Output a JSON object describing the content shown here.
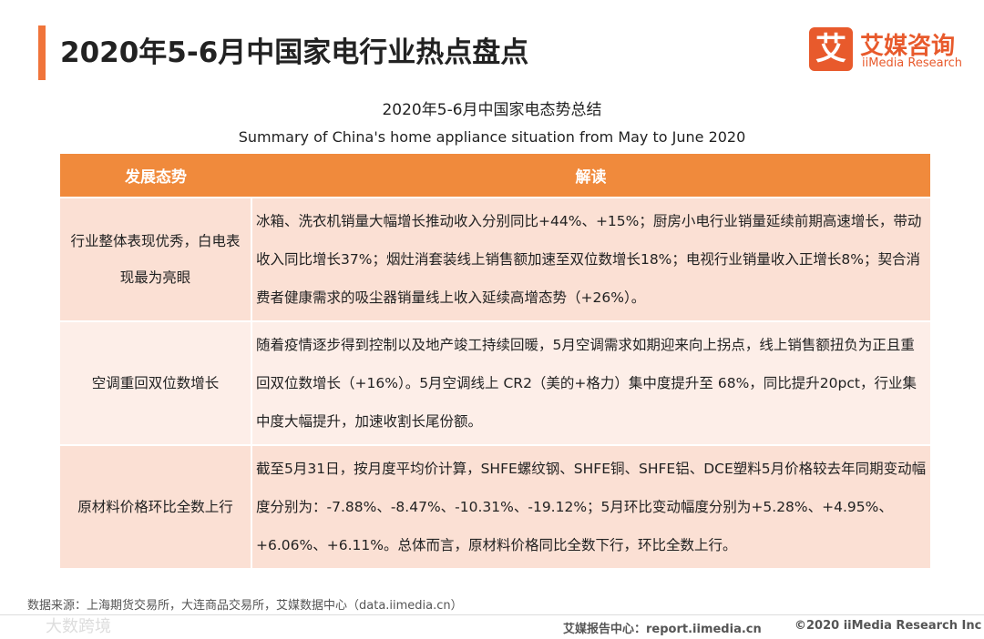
{
  "header": {
    "title": "2020年5-6月中国家电行业热点盘点",
    "logo_icon": "艾",
    "logo_name": "艾媒咨询",
    "logo_en": "iiMedia Research"
  },
  "subtitle": {
    "cn": "2020年5-6月中国家电态势总结",
    "en": "Summary of China's home appliance situation from May to June 2020"
  },
  "table": {
    "columns": [
      "发展态势",
      "解读"
    ],
    "rows": [
      [
        "行业整体表现优秀，白电表现最为亮眼",
        "冰箱、洗衣机销量大幅增长推动收入分别同比+44%、+15%；厨房小电行业销量延续前期高速增长，带动收入同比增长37%；烟灶消套装线上销售额加速至双位数增长18%；电视行业销量收入正增长8%；契合消费者健康需求的吸尘器销量线上收入延续高增态势（+26%）。"
      ],
      [
        "空调重回双位数增长",
        "随着疫情逐步得到控制以及地产竣工持续回暖，5月空调需求如期迎来向上拐点，线上销售额扭负为正且重回双位数增长（+16%）。5月空调线上 CR2（美的+格力）集中度提升至 68%，同比提升20pct，行业集中度大幅提升，加速收割长尾份额。"
      ],
      [
        "原材料价格环比全数上行",
        "截至5月31日，按月度平均价计算，SHFE螺纹钢、SHFE铜、SHFE铝、DCE塑料5月价格较去年同期变动幅度分别为：-7.88%、-8.47%、-10.31%、-19.12%；5月环比变动幅度分别为+5.28%、+4.95%、+6.06%、+6.11%。总体而言，原材料价格同比全数下行，环比全数上行。"
      ]
    ]
  },
  "source": "数据来源：上海期货交易所，大连商品交易所，艾媒数据中心（data.iimedia.cn）",
  "footer": {
    "report": "艾媒报告中心：report.iimedia.cn",
    "copyright": "©2020  iiMedia Research  Inc",
    "watermark": "大数跨境"
  }
}
